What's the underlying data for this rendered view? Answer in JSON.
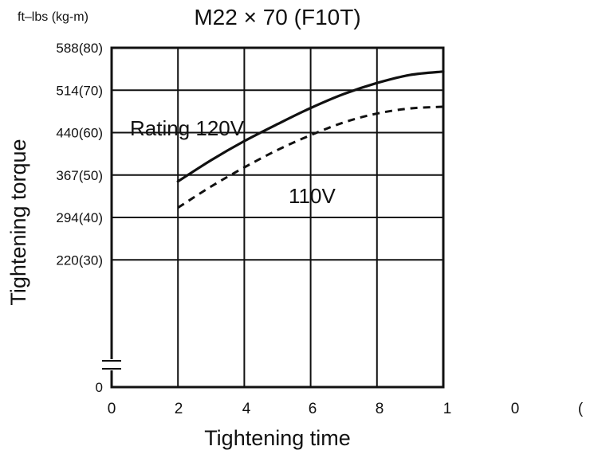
{
  "chart_data": {
    "type": "line",
    "title": "M22 × 70 (F10T)",
    "unit_label": "ft–lbs (kg-m)",
    "xlabel": "Tightening time",
    "ylabel": "Tightening torque",
    "xlim": [
      0,
      10
    ],
    "ylim": [
      0,
      80
    ],
    "y_axis_break": true,
    "grid": true,
    "x_ticks": [
      "0",
      "2",
      "4",
      "6",
      "8",
      "1",
      "0",
      "("
    ],
    "y_ticks": [
      {
        "value": 0,
        "label": "0"
      },
      {
        "value": 30,
        "label": "220(30)"
      },
      {
        "value": 40,
        "label": "294(40)"
      },
      {
        "value": 50,
        "label": "367(50)"
      },
      {
        "value": 60,
        "label": "440(60)"
      },
      {
        "value": 70,
        "label": "514(70)"
      },
      {
        "value": 80,
        "label": "588(80)"
      }
    ],
    "series": [
      {
        "name": "Rating 120V",
        "style": "solid",
        "x": [
          2,
          3,
          4,
          5,
          6,
          7,
          8,
          9,
          10
        ],
        "y": [
          48.5,
          53.5,
          58,
          62,
          65.8,
          69.1,
          71.7,
          73.6,
          74.4
        ]
      },
      {
        "name": "110V",
        "style": "dashed",
        "x": [
          2,
          3,
          4,
          5,
          6,
          7,
          8,
          9,
          10
        ],
        "y": [
          42.3,
          47.3,
          51.8,
          55.9,
          59.4,
          62.4,
          64.5,
          65.7,
          66.1
        ]
      }
    ],
    "colors": {
      "line": "#111111",
      "background": "#ffffff"
    }
  }
}
